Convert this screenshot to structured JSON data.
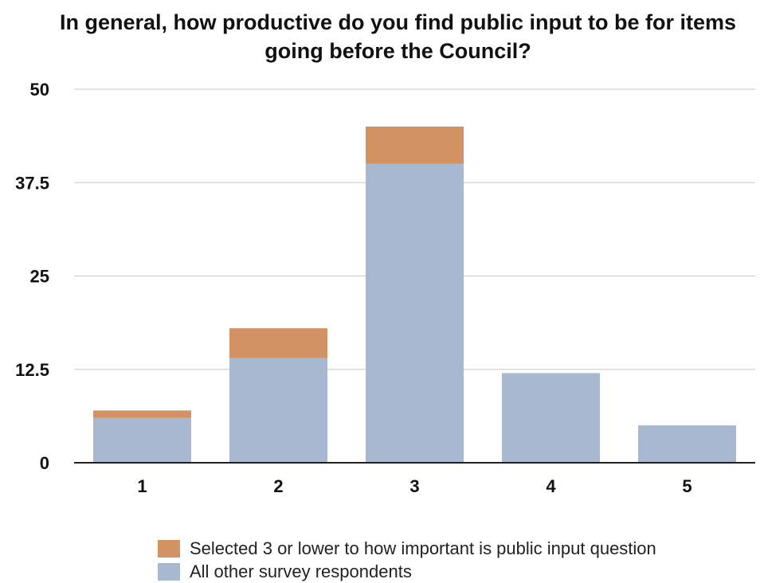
{
  "chart_data": {
    "type": "bar",
    "stacked": true,
    "title": "In general, how productive do you find public input to be for items going before the Council?",
    "xlabel": "",
    "ylabel": "",
    "categories": [
      "1",
      "2",
      "3",
      "4",
      "5"
    ],
    "series": [
      {
        "name": "All other survey respondents",
        "values": [
          6,
          14,
          40,
          12,
          5
        ],
        "color": "#a8b8d1"
      },
      {
        "name": "Selected 3 or lower to how important is public input question",
        "values": [
          1,
          4,
          5,
          0,
          0
        ],
        "color": "#d39262"
      }
    ],
    "ylim": [
      0,
      50
    ],
    "yticks": [
      "0",
      "12.5",
      "25",
      "37.5",
      "50"
    ],
    "grid": true,
    "legend_position": "bottom",
    "legend_order": [
      1,
      0
    ]
  }
}
